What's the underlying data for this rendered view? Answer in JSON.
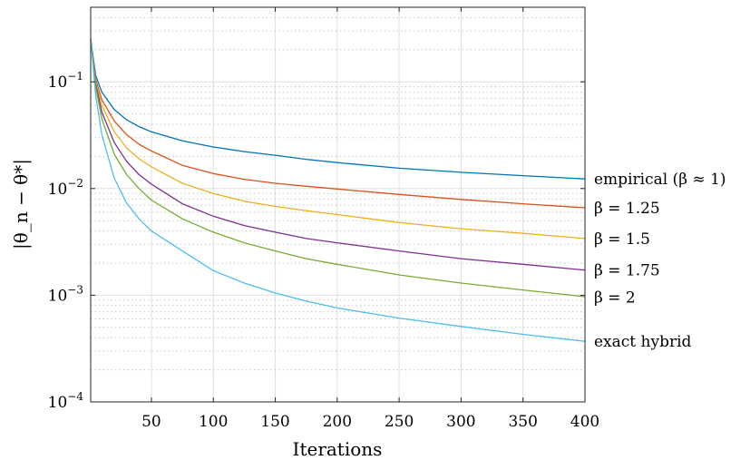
{
  "chart_data": {
    "type": "line",
    "title": "",
    "xlabel": "Iterations",
    "ylabel": "|θ_n − θ*|",
    "yscale": "log",
    "xlim": [
      1,
      400
    ],
    "ylim": [
      0.0001,
      0.5
    ],
    "xticks": [
      50,
      100,
      150,
      200,
      250,
      300,
      350,
      400
    ],
    "xtick_labels": [
      "50",
      "100",
      "150",
      "200",
      "250",
      "300",
      "350",
      "400"
    ],
    "yticks": [
      0.1,
      0.01,
      0.001,
      0.0001
    ],
    "ytick_labels": [
      {
        "base": "10",
        "exp": "−1"
      },
      {
        "base": "10",
        "exp": "−2"
      },
      {
        "base": "10",
        "exp": "−3"
      },
      {
        "base": "10",
        "exp": "−4"
      }
    ],
    "grid": true,
    "legend": "none",
    "series": [
      {
        "name": "empirical (β ≈ 1)",
        "color": "#0072BD",
        "x": [
          1,
          5,
          10,
          20,
          30,
          40,
          50,
          75,
          100,
          125,
          150,
          175,
          200,
          250,
          300,
          350,
          400
        ],
        "y": [
          0.25,
          0.115,
          0.08,
          0.055,
          0.044,
          0.038,
          0.034,
          0.028,
          0.0245,
          0.0222,
          0.0205,
          0.0188,
          0.0175,
          0.0155,
          0.0142,
          0.0132,
          0.0123
        ]
      },
      {
        "name": "β = 1.25",
        "color": "#D95319",
        "x": [
          1,
          5,
          10,
          20,
          30,
          40,
          50,
          75,
          100,
          125,
          150,
          175,
          200,
          250,
          300,
          350,
          400
        ],
        "y": [
          0.25,
          0.105,
          0.068,
          0.043,
          0.032,
          0.026,
          0.0225,
          0.0165,
          0.0138,
          0.0122,
          0.0112,
          0.0105,
          0.0099,
          0.0088,
          0.0079,
          0.0072,
          0.0066
        ]
      },
      {
        "name": "β = 1.5",
        "color": "#EDB120",
        "x": [
          1,
          5,
          10,
          20,
          30,
          40,
          50,
          75,
          100,
          125,
          150,
          175,
          200,
          250,
          300,
          350,
          400
        ],
        "y": [
          0.25,
          0.1,
          0.06,
          0.034,
          0.024,
          0.019,
          0.016,
          0.0112,
          0.009,
          0.0076,
          0.0068,
          0.0062,
          0.0057,
          0.0048,
          0.0042,
          0.0038,
          0.0034
        ]
      },
      {
        "name": "β = 1.75",
        "color": "#7E2F8E",
        "x": [
          1,
          5,
          10,
          20,
          30,
          40,
          50,
          75,
          100,
          125,
          150,
          175,
          200,
          250,
          300,
          350,
          400
        ],
        "y": [
          0.25,
          0.095,
          0.052,
          0.027,
          0.018,
          0.0135,
          0.011,
          0.0072,
          0.0055,
          0.0045,
          0.0039,
          0.0034,
          0.0031,
          0.0026,
          0.0022,
          0.00195,
          0.00172
        ]
      },
      {
        "name": "β = 2",
        "color": "#77AC30",
        "x": [
          1,
          5,
          10,
          20,
          30,
          40,
          50,
          75,
          100,
          125,
          150,
          175,
          200,
          250,
          300,
          350,
          400
        ],
        "y": [
          0.25,
          0.09,
          0.045,
          0.021,
          0.0135,
          0.01,
          0.0078,
          0.0052,
          0.0039,
          0.0031,
          0.0026,
          0.0022,
          0.00195,
          0.00155,
          0.0013,
          0.00112,
          0.00097
        ]
      },
      {
        "name": "exact hybrid",
        "color": "#4DBEEE",
        "x": [
          1,
          5,
          10,
          20,
          30,
          40,
          50,
          75,
          100,
          125,
          150,
          175,
          200,
          250,
          300,
          350,
          400
        ],
        "y": [
          0.25,
          0.075,
          0.032,
          0.0125,
          0.0073,
          0.0052,
          0.004,
          0.0026,
          0.0017,
          0.0013,
          0.00105,
          0.00088,
          0.00076,
          0.00061,
          0.00051,
          0.00043,
          0.00037
        ]
      }
    ]
  }
}
